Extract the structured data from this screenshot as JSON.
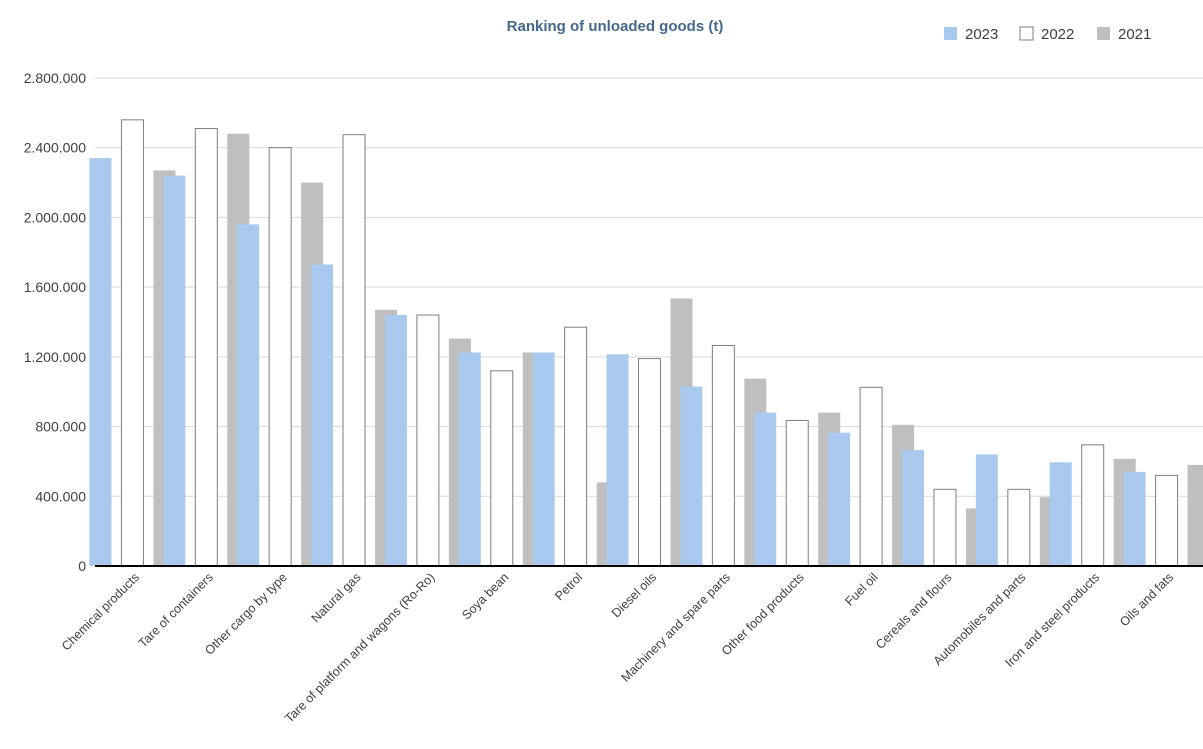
{
  "chart_data": {
    "type": "bar",
    "title": "Ranking of unloaded goods (t)",
    "xlabel": "",
    "ylabel": "",
    "ylim": [
      0,
      2800000
    ],
    "yticks": [
      0,
      400000,
      800000,
      1200000,
      1600000,
      2000000,
      2400000,
      2800000
    ],
    "ytick_labels": [
      "0",
      "400.000",
      "800.000",
      "1.200.000",
      "1.600.000",
      "2.000.000",
      "2.400.000",
      "2.800.000"
    ],
    "grid": true,
    "legend_position": "top-right",
    "categories": [
      "Chemical products",
      "Tare of containers",
      "Other cargo by type",
      "Natural gas",
      "Tare of platform and wagons (Ro-Ro)",
      "Soya bean",
      "Petrol",
      "Diesel oils",
      "Machinery and spare parts",
      "Other food products",
      "Fuel oil",
      "Cereals and flours",
      "Automobiles and parts",
      "Iron and steel products",
      "Oils and fats"
    ],
    "series": [
      {
        "name": "2023",
        "color": "#a9c9ee",
        "values": [
          2340000,
          2240000,
          1960000,
          1730000,
          1440000,
          1225000,
          1225000,
          1215000,
          1030000,
          880000,
          765000,
          665000,
          640000,
          595000,
          540000
        ]
      },
      {
        "name": "2022",
        "color": "#ffffff",
        "values": [
          2560000,
          2510000,
          2400000,
          2475000,
          1440000,
          1120000,
          1370000,
          1190000,
          1265000,
          835000,
          1025000,
          440000,
          440000,
          695000,
          520000
        ]
      },
      {
        "name": "2021",
        "color": "#bfbfbf",
        "values": [
          2270000,
          2480000,
          2200000,
          1470000,
          1305000,
          1225000,
          480000,
          1535000,
          1075000,
          880000,
          810000,
          330000,
          395000,
          615000,
          580000
        ]
      }
    ]
  }
}
